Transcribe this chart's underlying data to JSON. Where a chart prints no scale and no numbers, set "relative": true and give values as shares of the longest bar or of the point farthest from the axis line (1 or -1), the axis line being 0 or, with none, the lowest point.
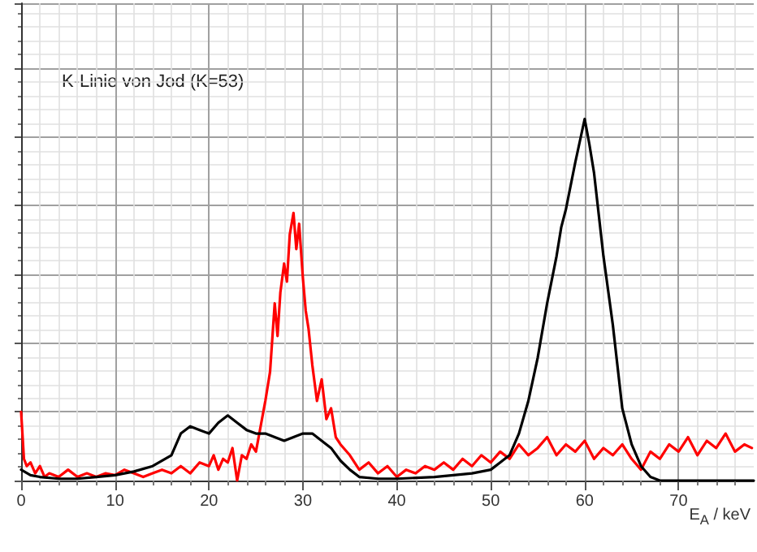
{
  "chart_data": {
    "type": "line",
    "relative": true,
    "xlabel": "E$_{A}$ / keV",
    "annotations": [
      "K-Linie von Jod (K=53)"
    ],
    "xlim": [
      0,
      78
    ],
    "xticks": [
      0,
      10,
      20,
      30,
      40,
      50,
      60,
      70
    ],
    "grid": true,
    "marker": "none",
    "line_style": "solid",
    "series": [
      {
        "color": "#ff0000",
        "x": [
          0,
          0.3,
          0.6,
          1,
          1.5,
          2,
          2.5,
          3,
          4,
          5,
          6,
          7,
          8,
          9,
          10,
          11,
          12,
          13,
          14,
          15,
          16,
          17,
          18,
          19,
          20,
          20.5,
          21,
          21.5,
          22,
          22.5,
          23,
          23.5,
          24,
          24.5,
          25,
          25.5,
          26,
          26.5,
          27,
          27.3,
          27.6,
          28,
          28.3,
          28.6,
          29,
          29.3,
          29.6,
          30,
          30.3,
          30.6,
          31,
          31.5,
          32,
          32.5,
          33,
          33.5,
          34,
          35,
          36,
          37,
          38,
          39,
          40,
          41,
          42,
          43,
          44,
          45,
          46,
          47,
          48,
          49,
          50,
          51,
          52,
          53,
          54,
          55,
          56,
          57,
          58,
          59,
          60,
          61,
          62,
          63,
          64,
          65,
          66,
          67,
          68,
          69,
          70,
          71,
          72,
          73,
          74,
          75,
          76,
          77,
          77.8
        ],
        "values": [
          0.19,
          0.06,
          0.04,
          0.05,
          0.02,
          0.04,
          0.01,
          0.02,
          0.01,
          0.03,
          0.01,
          0.02,
          0.01,
          0.02,
          0.015,
          0.03,
          0.02,
          0.01,
          0.02,
          0.03,
          0.02,
          0.04,
          0.02,
          0.05,
          0.04,
          0.07,
          0.03,
          0.06,
          0.05,
          0.09,
          0.0,
          0.07,
          0.06,
          0.1,
          0.08,
          0.15,
          0.22,
          0.3,
          0.49,
          0.4,
          0.52,
          0.6,
          0.55,
          0.68,
          0.74,
          0.64,
          0.71,
          0.56,
          0.47,
          0.42,
          0.32,
          0.22,
          0.28,
          0.17,
          0.2,
          0.12,
          0.1,
          0.07,
          0.03,
          0.05,
          0.02,
          0.04,
          0.01,
          0.03,
          0.02,
          0.04,
          0.03,
          0.05,
          0.03,
          0.06,
          0.04,
          0.07,
          0.05,
          0.08,
          0.06,
          0.1,
          0.07,
          0.09,
          0.12,
          0.07,
          0.1,
          0.08,
          0.11,
          0.06,
          0.09,
          0.07,
          0.1,
          0.06,
          0.03,
          0.08,
          0.06,
          0.1,
          0.08,
          0.12,
          0.07,
          0.11,
          0.09,
          0.13,
          0.08,
          0.1,
          0.09
        ]
      },
      {
        "color": "#000000",
        "x": [
          0,
          1,
          2,
          4,
          6,
          8,
          10,
          12,
          14,
          16,
          17,
          18,
          19,
          20,
          21,
          22,
          23,
          24,
          25,
          26,
          27,
          28,
          29,
          30,
          31,
          32,
          33,
          34,
          35,
          36,
          38,
          40,
          44,
          48,
          50,
          51,
          52,
          53,
          54,
          55,
          56,
          57,
          57.5,
          58,
          59,
          59.5,
          60,
          60.5,
          61,
          62,
          63,
          64,
          65,
          66,
          67,
          68,
          72,
          78
        ],
        "values": [
          0.03,
          0.015,
          0.01,
          0.005,
          0.005,
          0.01,
          0.015,
          0.025,
          0.04,
          0.07,
          0.13,
          0.15,
          0.14,
          0.13,
          0.16,
          0.18,
          0.16,
          0.14,
          0.13,
          0.13,
          0.12,
          0.11,
          0.12,
          0.13,
          0.13,
          0.11,
          0.09,
          0.055,
          0.03,
          0.01,
          0.005,
          0.005,
          0.01,
          0.02,
          0.03,
          0.05,
          0.07,
          0.13,
          0.22,
          0.34,
          0.49,
          0.62,
          0.7,
          0.75,
          0.88,
          0.94,
          1.0,
          0.93,
          0.85,
          0.62,
          0.43,
          0.2,
          0.1,
          0.04,
          0.01,
          0.0,
          0.0,
          0.0
        ]
      }
    ]
  }
}
